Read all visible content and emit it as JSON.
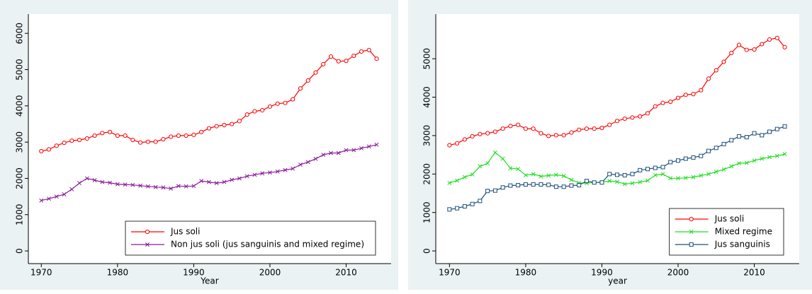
{
  "chart_data": [
    {
      "type": "line",
      "x_label": "Year",
      "x": [
        1970,
        1971,
        1972,
        1973,
        1974,
        1975,
        1976,
        1977,
        1978,
        1979,
        1980,
        1981,
        1982,
        1983,
        1984,
        1985,
        1986,
        1987,
        1988,
        1989,
        1990,
        1991,
        1992,
        1993,
        1994,
        1995,
        1996,
        1997,
        1998,
        1999,
        2000,
        2001,
        2002,
        2003,
        2004,
        2005,
        2006,
        2007,
        2008,
        2009,
        2010,
        2011,
        2012,
        2013,
        2014
      ],
      "series": [
        {
          "name": "Jus soli",
          "color": "#ff0000",
          "marker": "circle",
          "values": [
            2750,
            2800,
            2900,
            2980,
            3040,
            3060,
            3100,
            3180,
            3250,
            3280,
            3180,
            3180,
            3060,
            2990,
            3010,
            3010,
            3080,
            3150,
            3180,
            3180,
            3200,
            3280,
            3380,
            3440,
            3470,
            3500,
            3580,
            3760,
            3850,
            3880,
            3980,
            4060,
            4080,
            4180,
            4480,
            4700,
            4920,
            5150,
            5360,
            5230,
            5240,
            5380,
            5500,
            5540,
            5300
          ]
        },
        {
          "name": "Non jus soli (jus sanguinis and mixed regime)",
          "color": "#8b1a9b",
          "marker": "x",
          "values": [
            1390,
            1440,
            1500,
            1560,
            1700,
            1870,
            2000,
            1950,
            1900,
            1880,
            1840,
            1830,
            1820,
            1800,
            1780,
            1760,
            1750,
            1720,
            1790,
            1780,
            1790,
            1930,
            1900,
            1870,
            1900,
            1960,
            2000,
            2060,
            2100,
            2140,
            2160,
            2190,
            2230,
            2270,
            2380,
            2450,
            2540,
            2650,
            2700,
            2700,
            2780,
            2780,
            2830,
            2880,
            2930
          ]
        }
      ],
      "xlim": [
        1968.3,
        2015.9
      ],
      "xticks": [
        1970,
        1980,
        1990,
        2000,
        2010
      ],
      "ylim": [
        -350,
        6530
      ],
      "yticks": [
        0,
        1000,
        2000,
        3000,
        4000,
        5000,
        6000
      ],
      "legend": "bottom-right"
    },
    {
      "type": "line",
      "x_label": "year",
      "x": [
        1970,
        1971,
        1972,
        1973,
        1974,
        1975,
        1976,
        1977,
        1978,
        1979,
        1980,
        1981,
        1982,
        1983,
        1984,
        1985,
        1986,
        1987,
        1988,
        1989,
        1990,
        1991,
        1992,
        1993,
        1994,
        1995,
        1996,
        1997,
        1998,
        1999,
        2000,
        2001,
        2002,
        2003,
        2004,
        2005,
        2006,
        2007,
        2008,
        2009,
        2010,
        2011,
        2012,
        2013,
        2014
      ],
      "series": [
        {
          "name": "Jus soli",
          "color": "#ff0000",
          "marker": "circle",
          "values": [
            2750,
            2800,
            2900,
            2980,
            3040,
            3060,
            3100,
            3180,
            3250,
            3280,
            3180,
            3180,
            3060,
            2990,
            3010,
            3010,
            3080,
            3150,
            3180,
            3180,
            3200,
            3280,
            3380,
            3440,
            3470,
            3500,
            3580,
            3760,
            3850,
            3880,
            3980,
            4060,
            4080,
            4180,
            4480,
            4700,
            4920,
            5150,
            5360,
            5230,
            5240,
            5380,
            5500,
            5540,
            5300
          ]
        },
        {
          "name": "Mixed regime",
          "color": "#22dd22",
          "marker": "x",
          "values": [
            1770,
            1830,
            1920,
            1990,
            2200,
            2280,
            2560,
            2400,
            2150,
            2130,
            1970,
            2000,
            1940,
            1960,
            1980,
            1950,
            1850,
            1770,
            1760,
            1780,
            1790,
            1820,
            1800,
            1740,
            1760,
            1790,
            1830,
            1970,
            2000,
            1890,
            1890,
            1900,
            1920,
            1960,
            2000,
            2060,
            2120,
            2200,
            2280,
            2290,
            2350,
            2400,
            2440,
            2470,
            2520
          ]
        },
        {
          "name": "Jus sanguinis",
          "color": "#1f4e79",
          "marker": "square",
          "values": [
            1080,
            1110,
            1160,
            1220,
            1300,
            1560,
            1570,
            1650,
            1700,
            1710,
            1730,
            1730,
            1730,
            1720,
            1670,
            1670,
            1700,
            1710,
            1820,
            1780,
            1780,
            2000,
            1980,
            1970,
            2000,
            2100,
            2130,
            2160,
            2180,
            2310,
            2350,
            2400,
            2430,
            2470,
            2600,
            2680,
            2780,
            2880,
            2980,
            2960,
            3060,
            3010,
            3100,
            3170,
            3240
          ]
        }
      ],
      "xlim": [
        1968.2,
        2015.9
      ],
      "xticks": [
        1970,
        1980,
        1990,
        2000,
        2010
      ],
      "ylim": [
        -330,
        6160
      ],
      "yticks": [
        0,
        1000,
        2000,
        3000,
        4000,
        5000
      ],
      "legend": "bottom-right"
    }
  ]
}
